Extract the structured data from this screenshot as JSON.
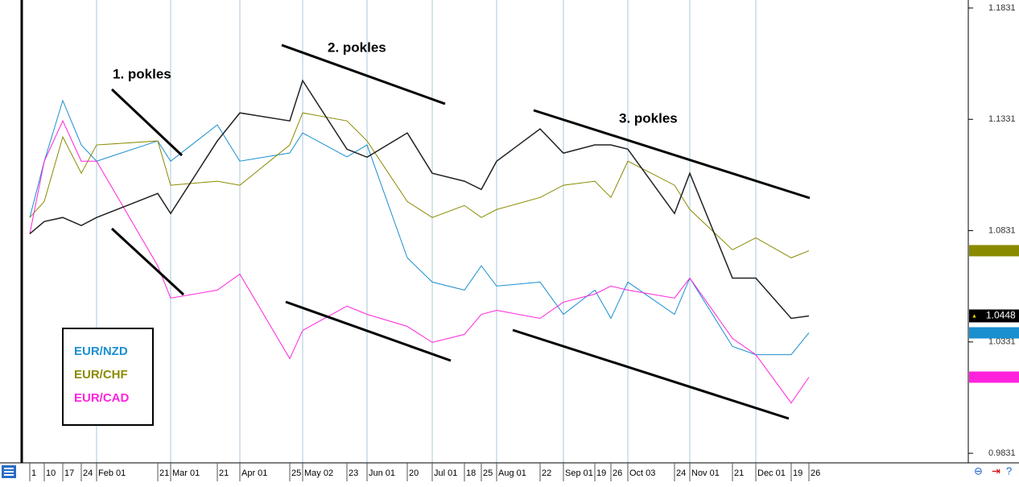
{
  "chart_data": {
    "type": "line",
    "categories": [
      "1",
      "10",
      "17",
      "24",
      "Feb 01",
      "21",
      "Mar 01",
      "21",
      "Apr 01",
      "25",
      "May 02",
      "23",
      "Jun 01",
      "20",
      "Jul 01",
      "18",
      "25",
      "Aug 01",
      "22",
      "Sep 01",
      "19",
      "26",
      "Oct 03",
      "24",
      "Nov 01",
      "21",
      "Dec 01",
      "19",
      "26"
    ],
    "price": {
      "color": "#222222",
      "values": [
        1.0817,
        1.0872,
        1.089,
        1.0854,
        1.089,
        1.0998,
        1.0908,
        1.1234,
        1.136,
        1.1324,
        1.1505,
        1.1197,
        1.1161,
        1.127,
        1.1089,
        1.1053,
        1.1016,
        1.1143,
        1.1288,
        1.1179,
        1.1216,
        1.1216,
        1.1197,
        1.0908,
        1.1089,
        1.0618,
        1.0618,
        1.0437,
        1.0448
      ]
    },
    "series": [
      {
        "name": "EUR/NZD",
        "color": "#1a8fd0",
        "values": [
          1.089,
          1.1143,
          1.1415,
          1.1216,
          1.1143,
          1.1234,
          1.1143,
          1.1306,
          1.1143,
          1.118,
          1.127,
          1.1162,
          1.1216,
          1.0709,
          1.06,
          1.0564,
          1.0673,
          1.0582,
          1.06,
          1.0455,
          1.0564,
          1.0437,
          1.06,
          1.0455,
          1.0618,
          1.0311,
          1.0274,
          1.0274,
          1.0372
        ]
      },
      {
        "name": "EUR/CHF",
        "color": "#8a8a00",
        "values": [
          1.089,
          1.0962,
          1.1252,
          1.1089,
          1.1216,
          1.1234,
          1.1035,
          1.1053,
          1.1035,
          1.1216,
          1.136,
          1.1324,
          1.1234,
          1.0962,
          1.089,
          1.0944,
          1.089,
          1.0926,
          1.098,
          1.1035,
          1.1053,
          1.098,
          1.1143,
          1.1035,
          1.0926,
          1.0745,
          1.0799,
          1.0709,
          1.0741
        ]
      },
      {
        "name": "EUR/CAD",
        "color": "#ff22dd",
        "values": [
          1.0817,
          1.1143,
          1.1324,
          1.1143,
          1.1143,
          1.0673,
          1.0528,
          1.0564,
          1.0636,
          1.0256,
          1.0383,
          1.0492,
          1.0455,
          1.0401,
          1.0329,
          1.0365,
          1.0455,
          1.0473,
          1.0437,
          1.051,
          1.0546,
          1.0582,
          1.0564,
          1.0528,
          1.0618,
          1.0347,
          1.0274,
          1.0057,
          1.0173
        ]
      }
    ],
    "ylim": [
      0.9788,
      1.1867
    ],
    "yticks": [
      0.9831,
      1.0331,
      1.0831,
      1.1331,
      1.1831
    ],
    "grid": true,
    "annotations": [
      "1. pokles",
      "2. pokles",
      "3. pokles"
    ]
  }
}
